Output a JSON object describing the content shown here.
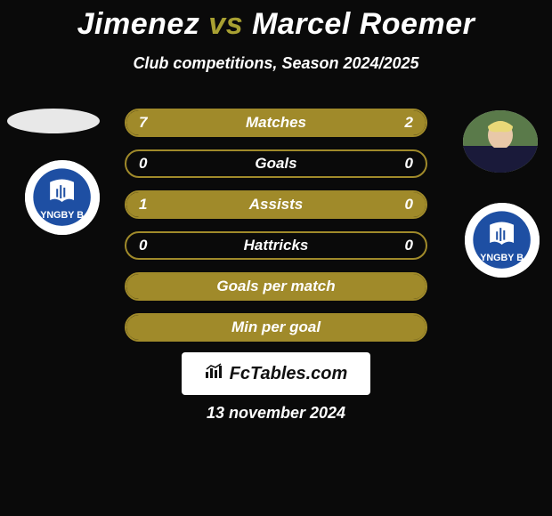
{
  "title": {
    "player1": "Jimenez",
    "vs": "vs",
    "player2": "Marcel Roemer"
  },
  "subtitle": "Club competitions, Season 2024/2025",
  "club_badge": {
    "primary_color": "#1e4fa3",
    "text": "YNGBY B",
    "text_color": "#ffffff"
  },
  "bars": {
    "border_color": "#a08a2a",
    "fill_color": "#a08a2a",
    "text_color": "#ffffff",
    "rows": [
      {
        "label": "Matches",
        "left": "7",
        "right": "2",
        "left_pct": 77,
        "right_pct": 23
      },
      {
        "label": "Goals",
        "left": "0",
        "right": "0",
        "left_pct": 0,
        "right_pct": 0
      },
      {
        "label": "Assists",
        "left": "1",
        "right": "0",
        "left_pct": 100,
        "right_pct": 0
      },
      {
        "label": "Hattricks",
        "left": "0",
        "right": "0",
        "left_pct": 0,
        "right_pct": 0
      },
      {
        "label": "Goals per match",
        "left": "",
        "right": "",
        "left_pct": 100,
        "right_pct": 0
      },
      {
        "label": "Min per goal",
        "left": "",
        "right": "",
        "left_pct": 100,
        "right_pct": 0
      }
    ]
  },
  "branding": "FcTables.com",
  "date": "13 november 2024",
  "colors": {
    "background": "#0a0a0a",
    "accent": "#a8a032",
    "white": "#ffffff"
  }
}
